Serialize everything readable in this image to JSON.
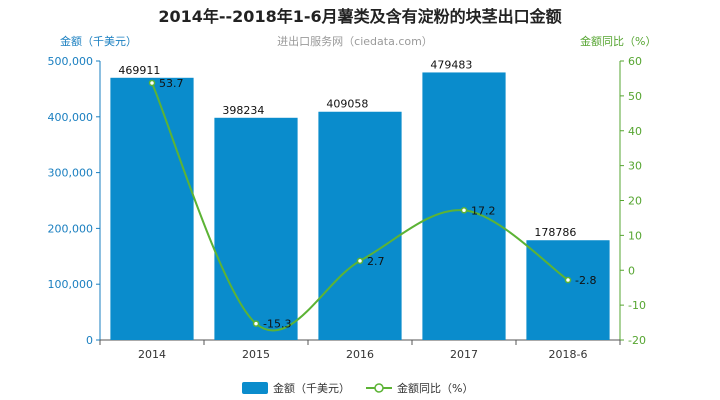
{
  "chart_data": {
    "type": "bar",
    "title": "2014年--2018年1-6月薯类及含有淀粉的块茎出口金额",
    "subtitle": "进出口服务网（ciedata.com）",
    "categories": [
      "2014",
      "2015",
      "2016",
      "2017",
      "2018-6"
    ],
    "ylabel_left": "金额（千美元）",
    "ylabel_right": "金额同比（%）",
    "ylim_left": [
      0,
      500000
    ],
    "ylim_right": [
      -20,
      60
    ],
    "yticks_left": [
      "0",
      "100,000",
      "200,000",
      "300,000",
      "400,000",
      "500,000"
    ],
    "yticks_right": [
      "-20",
      "-10",
      "0",
      "10",
      "20",
      "30",
      "40",
      "50",
      "60"
    ],
    "series": [
      {
        "name": "金额（千美元）",
        "type": "bar",
        "axis": "left",
        "color": "#0a8ccc",
        "values": [
          469911,
          398234,
          409058,
          479483,
          178786
        ],
        "labels": [
          "469911",
          "398234",
          "409058",
          "479483",
          "178786"
        ]
      },
      {
        "name": "金额同比（%）",
        "type": "line",
        "axis": "right",
        "color": "#5cb335",
        "values": [
          53.7,
          -15.3,
          2.7,
          17.2,
          -2.8
        ],
        "labels": [
          "53.7",
          "-15.3",
          "2.7",
          "17.2",
          "-2.8"
        ]
      }
    ],
    "legend_position": "bottom",
    "grid": false
  }
}
